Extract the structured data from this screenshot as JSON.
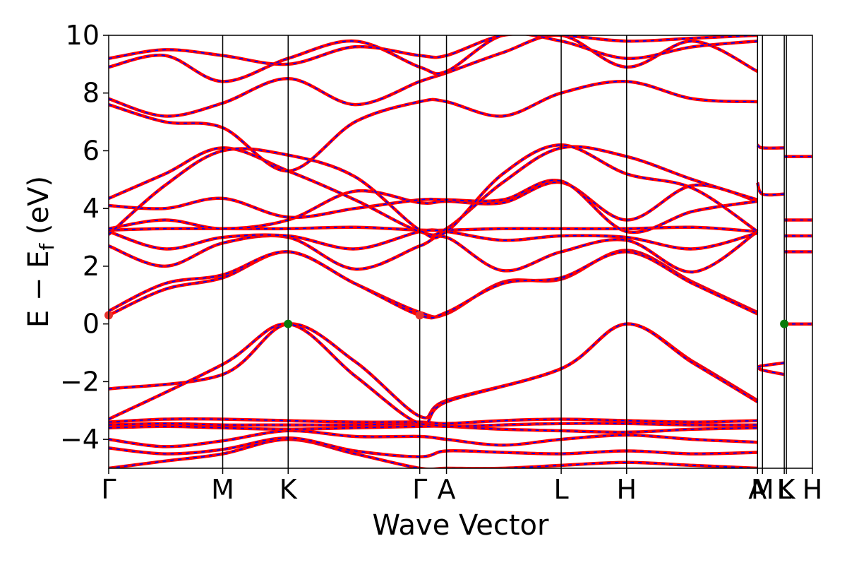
{
  "chart_data": {
    "type": "line",
    "title": "",
    "xlabel": "Wave Vector",
    "ylabel": "E − E",
    "ylabel_subscript": "f",
    "ylabel_unit": " (eV)",
    "ylim": [
      -5,
      10
    ],
    "yticks": [
      -4,
      -2,
      0,
      2,
      4,
      6,
      8,
      10
    ],
    "ytick_labels": [
      "−4",
      "−2",
      "0",
      "2",
      "4",
      "6",
      "8",
      "10"
    ],
    "x_range": [
      0,
      1
    ],
    "kpoints": [
      {
        "label": "Γ",
        "x": 0.0
      },
      {
        "label": "M",
        "x": 0.162
      },
      {
        "label": "K",
        "x": 0.255
      },
      {
        "label": "Γ",
        "x": 0.442
      },
      {
        "label": "A",
        "x": 0.48
      },
      {
        "label": "L",
        "x": 0.643
      },
      {
        "label": "H",
        "x": 0.736
      },
      {
        "label": "A",
        "x": 0.922
      },
      {
        "label": "M",
        "x": 0.929
      },
      {
        "label": "L",
        "x": 0.96
      },
      {
        "label": "K",
        "x": 0.963
      },
      {
        "label": "H",
        "x": 1.0
      }
    ],
    "colors": {
      "band": "#ff0000",
      "band_dash": "#0000ff",
      "cbm": "#e8322e",
      "vbm": "#0a7a0a"
    },
    "series": [
      {
        "x": [
          0,
          0.08,
          0.162,
          0.255,
          0.35,
          0.442,
          0.48,
          0.56,
          0.643,
          0.736,
          0.83,
          0.922
        ],
        "values": [
          -5.0,
          -4.75,
          -4.5,
          -4.0,
          -4.5,
          -5.0,
          -5.0,
          -5.0,
          -4.9,
          -4.8,
          -4.9,
          -5.0
        ]
      },
      {
        "x": [
          0,
          0.08,
          0.162,
          0.255,
          0.35,
          0.442,
          0.48,
          0.56,
          0.643,
          0.736,
          0.83,
          0.922
        ],
        "values": [
          -4.3,
          -4.5,
          -4.35,
          -3.95,
          -4.4,
          -4.6,
          -4.4,
          -4.45,
          -4.5,
          -4.4,
          -4.5,
          -4.45
        ]
      },
      {
        "x": [
          0,
          0.08,
          0.162,
          0.255,
          0.35,
          0.442,
          0.48,
          0.56,
          0.643,
          0.736,
          0.83,
          0.922
        ],
        "values": [
          -4.0,
          -4.25,
          -4.05,
          -3.7,
          -3.9,
          -3.9,
          -4.0,
          -4.2,
          -4.0,
          -3.85,
          -4.0,
          -4.1
        ]
      },
      {
        "x": [
          0,
          0.08,
          0.162,
          0.255,
          0.35,
          0.442,
          0.48,
          0.56,
          0.643,
          0.736,
          0.83,
          0.922
        ],
        "values": [
          -3.6,
          -3.55,
          -3.6,
          -3.65,
          -3.6,
          -3.55,
          -3.55,
          -3.65,
          -3.7,
          -3.75,
          -3.65,
          -3.6
        ]
      },
      {
        "x": [
          0,
          0.08,
          0.162,
          0.255,
          0.35,
          0.442,
          0.48,
          0.56,
          0.643,
          0.736,
          0.83,
          0.922
        ],
        "values": [
          -3.5,
          -3.45,
          -3.5,
          -3.5,
          -3.5,
          -3.45,
          -3.55,
          -3.5,
          -3.45,
          -3.45,
          -3.5,
          -3.5
        ]
      },
      {
        "x": [
          0,
          0.08,
          0.162,
          0.255,
          0.35,
          0.442,
          0.48,
          0.56,
          0.643,
          0.736,
          0.83,
          0.922
        ],
        "values": [
          -3.4,
          -3.3,
          -3.3,
          -3.35,
          -3.4,
          -3.4,
          -3.45,
          -3.35,
          -3.3,
          -3.35,
          -3.4,
          -3.35
        ]
      },
      {
        "x": [
          0,
          0.162,
          0.255,
          0.35,
          0.442,
          0.48,
          0.643,
          0.736,
          0.83,
          0.922
        ],
        "values": [
          -2.25,
          -1.75,
          0.0,
          -1.3,
          -3.2,
          -2.65,
          -1.55,
          0.0,
          -1.3,
          -2.65
        ]
      },
      {
        "x": [
          0,
          0.162,
          0.255,
          0.35,
          0.442,
          0.48,
          0.643,
          0.736,
          0.83,
          0.922
        ],
        "values": [
          -3.3,
          -1.4,
          0.0,
          -1.8,
          -3.45,
          -2.7,
          -1.55,
          0.0,
          -1.35,
          -2.7
        ]
      },
      {
        "x": [
          0,
          0.08,
          0.162,
          0.255,
          0.35,
          0.442,
          0.48,
          0.56,
          0.643,
          0.736,
          0.83,
          0.922
        ],
        "values": [
          0.3,
          1.2,
          1.6,
          2.5,
          1.4,
          0.4,
          0.35,
          1.45,
          1.55,
          2.55,
          1.45,
          0.4
        ]
      },
      {
        "x": [
          0,
          0.08,
          0.162,
          0.255,
          0.35,
          0.442,
          0.48,
          0.56,
          0.643,
          0.736,
          0.83,
          0.922
        ],
        "values": [
          0.45,
          1.4,
          1.7,
          2.5,
          1.4,
          0.3,
          0.4,
          1.4,
          1.6,
          2.5,
          1.4,
          0.35
        ]
      },
      {
        "x": [
          0,
          0.08,
          0.162,
          0.255,
          0.35,
          0.442,
          0.48,
          0.56,
          0.643,
          0.736,
          0.83,
          0.922
        ],
        "values": [
          2.7,
          2.0,
          2.8,
          3.0,
          1.9,
          2.7,
          3.0,
          1.85,
          2.5,
          2.9,
          1.8,
          3.2
        ]
      },
      {
        "x": [
          0,
          0.08,
          0.162,
          0.255,
          0.35,
          0.442,
          0.48,
          0.56,
          0.643,
          0.736,
          0.83,
          0.922
        ],
        "values": [
          3.2,
          2.6,
          3.0,
          3.05,
          2.6,
          3.2,
          3.2,
          2.9,
          3.05,
          3.0,
          2.6,
          3.15
        ]
      },
      {
        "x": [
          0,
          0.08,
          0.162,
          0.255,
          0.35,
          0.442,
          0.48,
          0.56,
          0.643,
          0.736,
          0.83,
          0.922
        ],
        "values": [
          3.25,
          3.3,
          3.3,
          3.3,
          3.35,
          3.25,
          3.25,
          3.3,
          3.3,
          3.3,
          3.35,
          3.2
        ]
      },
      {
        "x": [
          0,
          0.08,
          0.162,
          0.255,
          0.35,
          0.442,
          0.48,
          0.56,
          0.643,
          0.736,
          0.83,
          0.922
        ],
        "values": [
          3.3,
          3.6,
          3.3,
          3.6,
          4.6,
          4.2,
          4.25,
          4.2,
          4.9,
          3.6,
          4.8,
          4.25
        ]
      },
      {
        "x": [
          0,
          0.08,
          0.162,
          0.255,
          0.35,
          0.442,
          0.48,
          0.56,
          0.643,
          0.736,
          0.83,
          0.922
        ],
        "values": [
          4.1,
          4.0,
          4.35,
          3.7,
          4.0,
          4.3,
          4.3,
          4.3,
          4.95,
          3.2,
          3.9,
          4.25
        ]
      },
      {
        "x": [
          0,
          0.08,
          0.162,
          0.255,
          0.35,
          0.442,
          0.48,
          0.56,
          0.643,
          0.736,
          0.83,
          0.922
        ],
        "values": [
          4.35,
          5.2,
          6.1,
          5.3,
          4.3,
          3.2,
          3.3,
          4.9,
          6.1,
          5.8,
          5.0,
          4.3
        ]
      },
      {
        "x": [
          0,
          0.08,
          0.162,
          0.255,
          0.35,
          0.442,
          0.48,
          0.56,
          0.643,
          0.736,
          0.83,
          0.922
        ],
        "values": [
          3.1,
          4.8,
          6.0,
          5.85,
          5.1,
          3.25,
          3.2,
          5.2,
          6.2,
          5.2,
          4.7,
          3.2
        ]
      },
      {
        "x": [
          0,
          0.08,
          0.162,
          0.255,
          0.35,
          0.442,
          0.48,
          0.56,
          0.643,
          0.736,
          0.83,
          0.922
        ],
        "values": [
          7.6,
          7.0,
          6.8,
          5.3,
          7.0,
          7.7,
          7.7,
          7.2,
          8.0,
          8.4,
          7.8,
          7.7
        ]
      },
      {
        "x": [
          0,
          0.08,
          0.162,
          0.255,
          0.35,
          0.442,
          0.48,
          0.56,
          0.643,
          0.736,
          0.83,
          0.922
        ],
        "values": [
          7.8,
          7.2,
          7.65,
          8.5,
          7.6,
          8.4,
          8.7,
          9.4,
          10.0,
          8.9,
          9.8,
          8.75
        ]
      },
      {
        "x": [
          0,
          0.08,
          0.162,
          0.255,
          0.35,
          0.442,
          0.48,
          0.56,
          0.643,
          0.736,
          0.83,
          0.922
        ],
        "values": [
          8.9,
          9.3,
          8.4,
          9.2,
          9.8,
          8.9,
          8.75,
          10.0,
          9.8,
          9.2,
          9.6,
          9.8
        ]
      },
      {
        "x": [
          0,
          0.08,
          0.162,
          0.255,
          0.35,
          0.442,
          0.48,
          0.56,
          0.643,
          0.736,
          0.83,
          0.922
        ],
        "values": [
          9.2,
          9.5,
          9.3,
          9.0,
          9.6,
          9.3,
          9.3,
          10.0,
          10.0,
          9.8,
          9.9,
          10.0
        ]
      },
      {
        "x": [
          0.922,
          0.929,
          0.96
        ],
        "values": [
          6.2,
          6.1,
          6.1
        ]
      },
      {
        "x": [
          0.922,
          0.929,
          0.96
        ],
        "values": [
          4.9,
          4.5,
          4.5
        ]
      },
      {
        "x": [
          0.922,
          0.929,
          0.96
        ],
        "values": [
          -1.5,
          -1.6,
          -1.75
        ]
      },
      {
        "x": [
          0.922,
          0.929,
          0.96
        ],
        "values": [
          -1.5,
          -1.45,
          -1.35
        ]
      },
      {
        "x": [
          0.96,
          1.0
        ],
        "values": [
          0.0,
          0.0
        ]
      },
      {
        "x": [
          0.96,
          1.0
        ],
        "values": [
          5.8,
          5.8
        ]
      },
      {
        "x": [
          0.96,
          1.0
        ],
        "values": [
          3.6,
          3.6
        ]
      },
      {
        "x": [
          0.96,
          1.0
        ],
        "values": [
          3.05,
          3.05
        ]
      },
      {
        "x": [
          0.96,
          1.0
        ],
        "values": [
          2.5,
          2.5
        ]
      }
    ],
    "extrema": [
      {
        "kind": "cbm",
        "x": 0.0,
        "y": 0.3
      },
      {
        "kind": "cbm",
        "x": 0.442,
        "y": 0.3
      },
      {
        "kind": "vbm",
        "x": 0.255,
        "y": 0.0
      },
      {
        "kind": "vbm",
        "x": 0.96,
        "y": 0.0
      }
    ]
  }
}
